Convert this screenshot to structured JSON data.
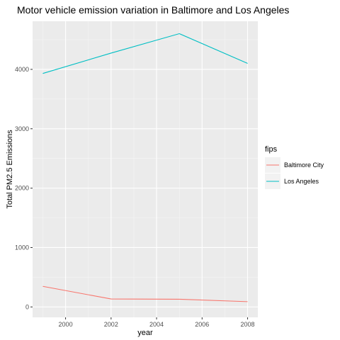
{
  "chart_data": {
    "type": "line",
    "title": "Motor vehicle emission variation in Baltimore and Los Angeles",
    "xlabel": "year",
    "ylabel": "Total PM2.5 Emissions",
    "xlim": [
      1998.55,
      2008.45
    ],
    "ylim": [
      -175,
      4810
    ],
    "x_ticks": [
      2000,
      2002,
      2004,
      2006,
      2008
    ],
    "y_ticks": [
      0,
      1000,
      2000,
      3000,
      4000
    ],
    "grid": true,
    "legend": {
      "title": "fips",
      "placement": "right"
    },
    "x": [
      1999,
      2002,
      2005,
      2008
    ],
    "series": [
      {
        "name": "Baltimore City",
        "color": "#F8766D",
        "values": [
          347,
          134,
          130,
          89
        ]
      },
      {
        "name": "Los Angeles",
        "color": "#00BFC4",
        "values": [
          3931,
          4274,
          4601,
          4101
        ]
      }
    ]
  }
}
